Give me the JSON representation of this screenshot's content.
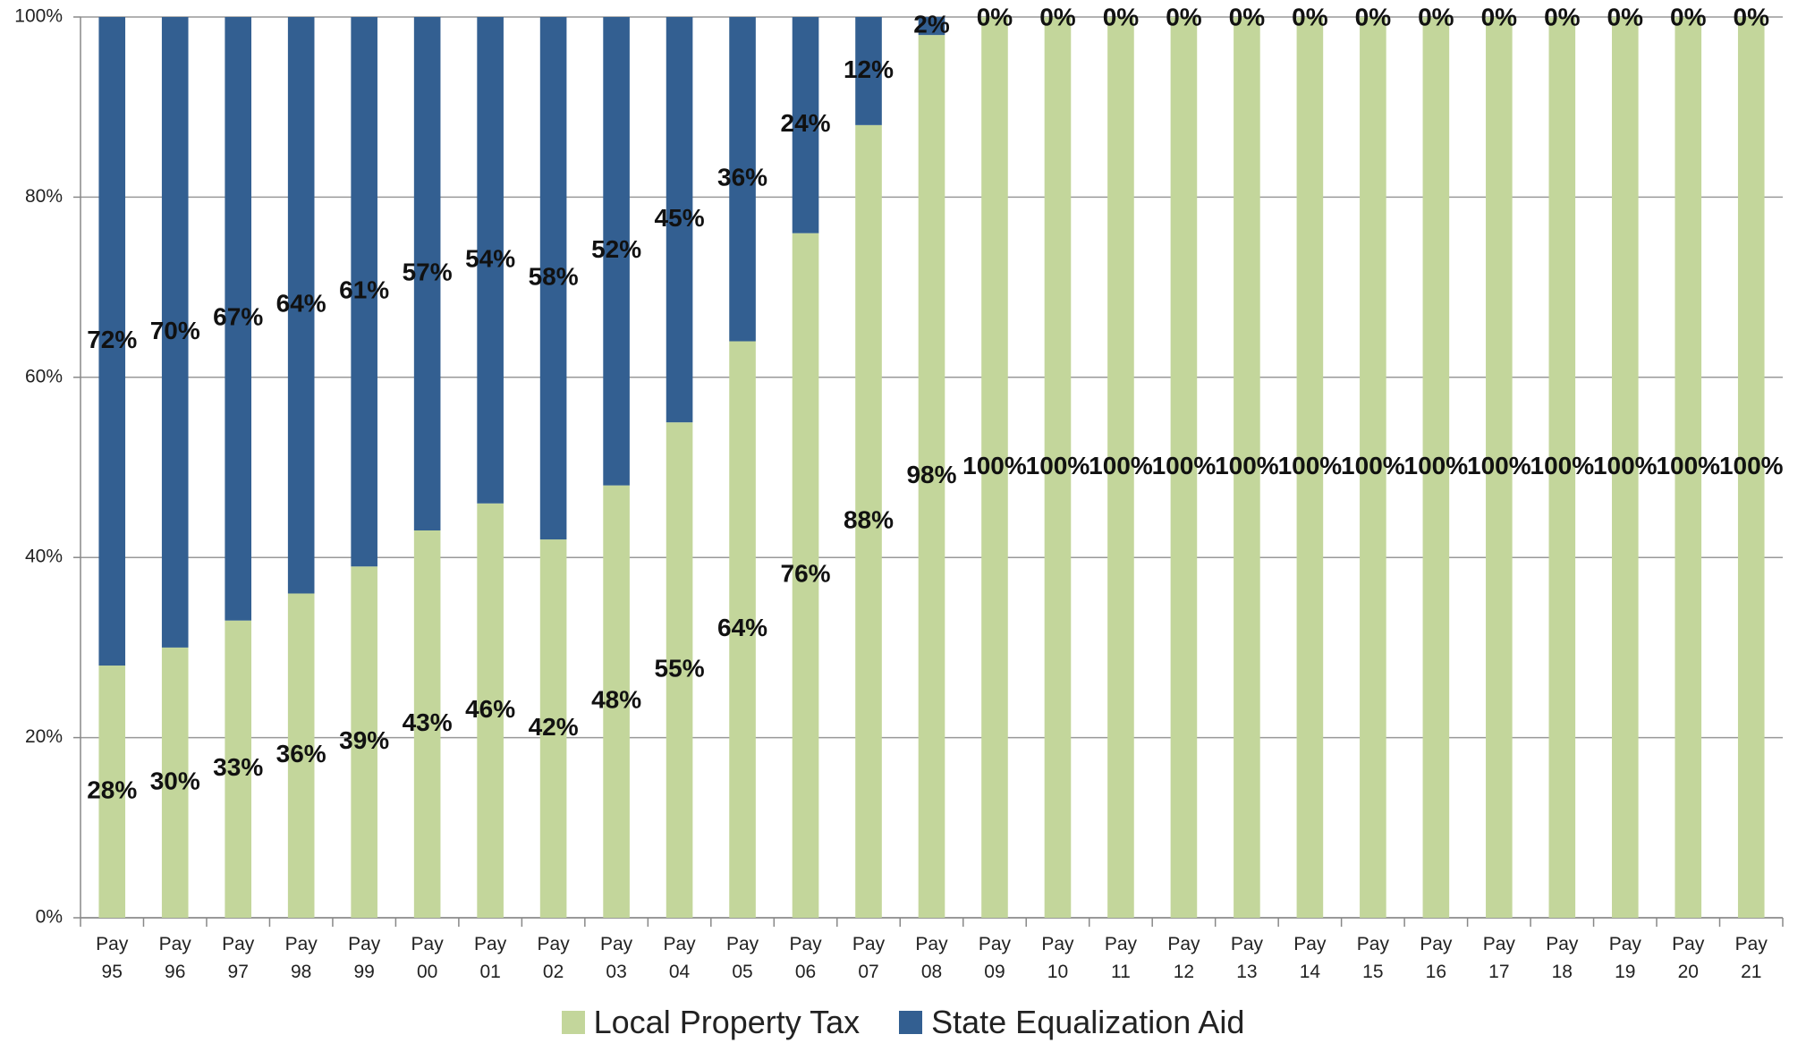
{
  "chart_data": {
    "type": "stacked_bar",
    "categories": [
      "Pay 95",
      "Pay 96",
      "Pay 97",
      "Pay 98",
      "Pay 99",
      "Pay 00",
      "Pay 01",
      "Pay 02",
      "Pay 03",
      "Pay 04",
      "Pay 05",
      "Pay 06",
      "Pay 07",
      "Pay 08",
      "Pay 09",
      "Pay 10",
      "Pay 11",
      "Pay 12",
      "Pay 13",
      "Pay 14",
      "Pay 15",
      "Pay 16",
      "Pay 17",
      "Pay 18",
      "Pay 19",
      "Pay 20",
      "Pay 21"
    ],
    "series": [
      {
        "name": "Local Property Tax",
        "color": "#c3d69b",
        "values": [
          28,
          30,
          33,
          36,
          39,
          43,
          46,
          42,
          48,
          55,
          64,
          76,
          88,
          98,
          100,
          100,
          100,
          100,
          100,
          100,
          100,
          100,
          100,
          100,
          100,
          100,
          100
        ],
        "value_labels": [
          "28%",
          "30%",
          "33%",
          "36%",
          "39%",
          "43%",
          "46%",
          "42%",
          "48%",
          "55%",
          "64%",
          "76%",
          "88%",
          "98%",
          "100%",
          "100%",
          "100%",
          "100%",
          "100%",
          "100%",
          "100%",
          "100%",
          "100%",
          "100%",
          "100%",
          "100%",
          "100%"
        ]
      },
      {
        "name": "State Equalization Aid",
        "color": "#335f91",
        "values": [
          72,
          70,
          67,
          64,
          61,
          57,
          54,
          58,
          52,
          45,
          36,
          24,
          12,
          2,
          0,
          0,
          0,
          0,
          0,
          0,
          0,
          0,
          0,
          0,
          0,
          0,
          0
        ],
        "value_labels": [
          "72%",
          "70%",
          "67%",
          "64%",
          "61%",
          "57%",
          "54%",
          "58%",
          "52%",
          "45%",
          "36%",
          "24%",
          "12%",
          "2%",
          "0%",
          "0%",
          "0%",
          "0%",
          "0%",
          "0%",
          "0%",
          "0%",
          "0%",
          "0%",
          "0%",
          "0%",
          "0%"
        ]
      }
    ],
    "ylim": [
      0,
      100
    ],
    "yticks": [
      {
        "value": 0,
        "label": "0%"
      },
      {
        "value": 20,
        "label": "20%"
      },
      {
        "value": 40,
        "label": "40%"
      },
      {
        "value": 60,
        "label": "60%"
      },
      {
        "value": 80,
        "label": "80%"
      },
      {
        "value": 100,
        "label": "100%"
      }
    ],
    "grid": true,
    "legend": "bottom"
  }
}
